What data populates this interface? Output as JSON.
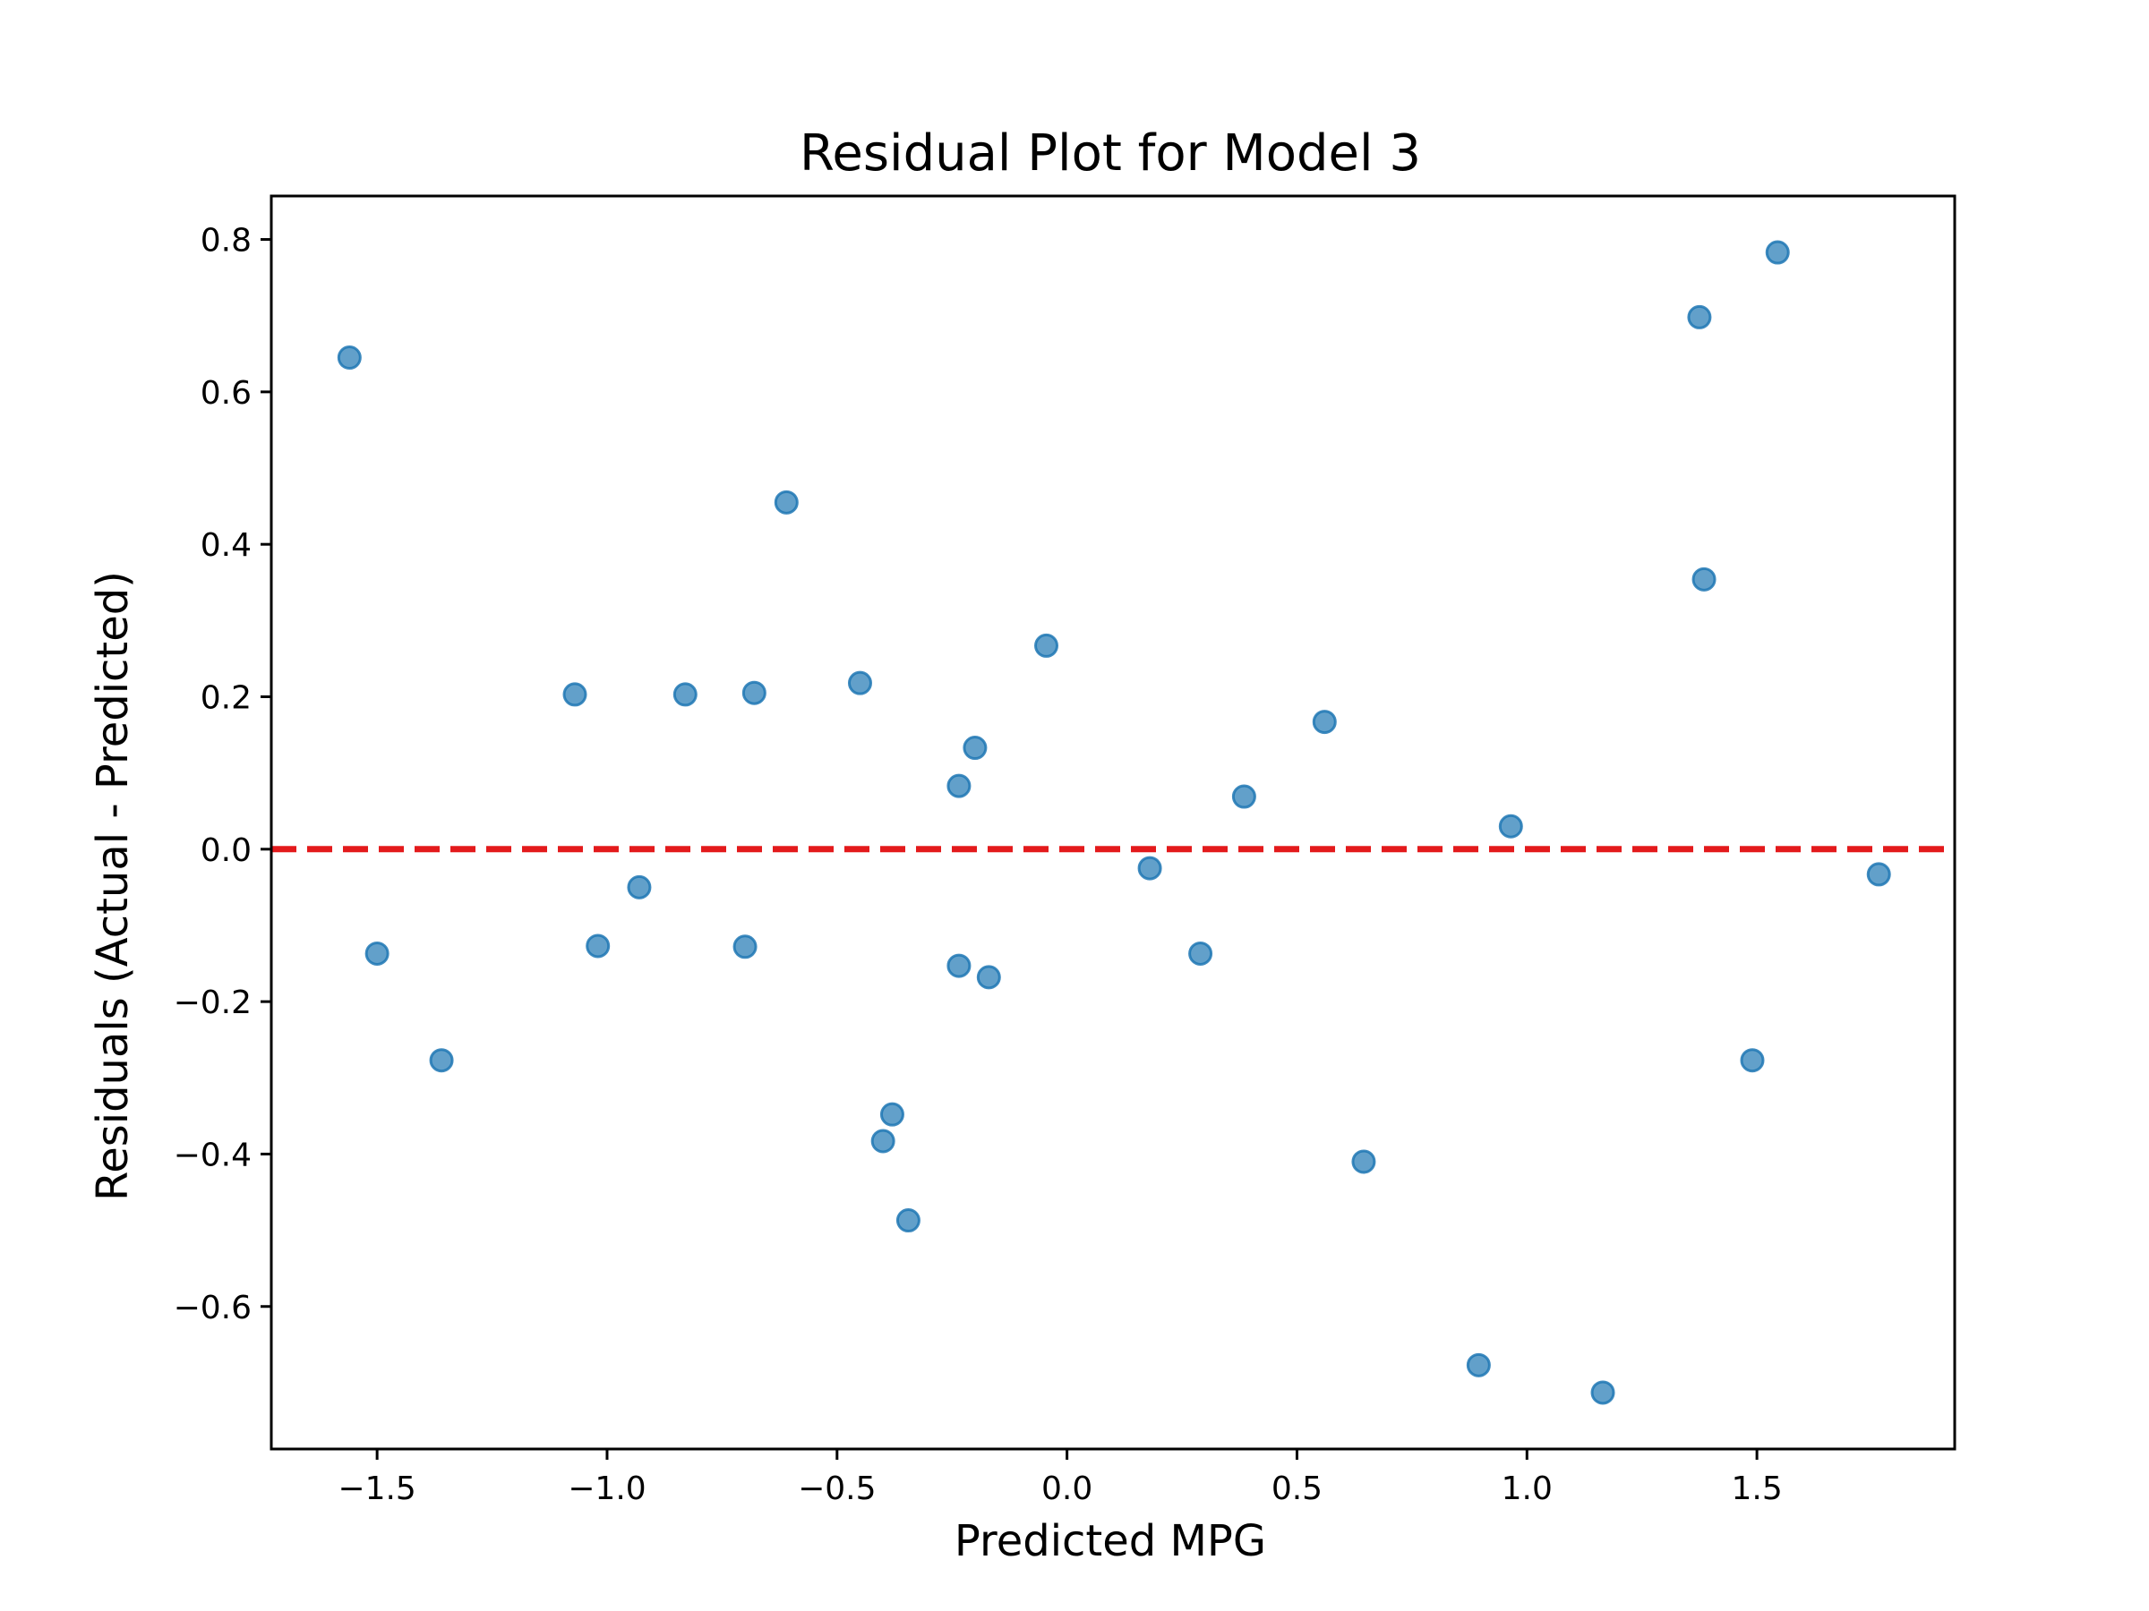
{
  "chart_data": {
    "type": "scatter",
    "title": "Residual Plot for Model 3",
    "xlabel": "Predicted MPG",
    "ylabel": "Residuals (Actual - Predicted)",
    "xlim": [
      -1.73,
      1.93
    ],
    "ylim": [
      -0.787,
      0.857
    ],
    "xticks": [
      -1.5,
      -1.0,
      -0.5,
      0.0,
      0.5,
      1.0,
      1.5
    ],
    "xtick_labels": [
      "−1.5",
      "−1.0",
      "−0.5",
      "0.0",
      "0.5",
      "1.0",
      "1.5"
    ],
    "yticks": [
      0.8,
      0.6,
      0.4,
      0.2,
      0.0,
      -0.2,
      -0.4,
      -0.6
    ],
    "ytick_labels": [
      "0.8",
      "0.6",
      "0.4",
      "0.2",
      "0.0",
      "−0.2",
      "−0.4",
      "−0.6"
    ],
    "grid": false,
    "reference_line": {
      "y": 0,
      "color": "#e31a1c",
      "style": "dashed"
    },
    "marker_color": "#1f77b4",
    "points": [
      {
        "x": -1.56,
        "y": 0.645
      },
      {
        "x": -1.5,
        "y": -0.137
      },
      {
        "x": -1.36,
        "y": -0.277
      },
      {
        "x": -1.07,
        "y": 0.203
      },
      {
        "x": -1.02,
        "y": -0.127
      },
      {
        "x": -0.93,
        "y": -0.05
      },
      {
        "x": -0.83,
        "y": 0.203
      },
      {
        "x": -0.7,
        "y": -0.128
      },
      {
        "x": -0.68,
        "y": 0.205
      },
      {
        "x": -0.61,
        "y": 0.455
      },
      {
        "x": -0.45,
        "y": 0.218
      },
      {
        "x": -0.4,
        "y": -0.383
      },
      {
        "x": -0.38,
        "y": -0.348
      },
      {
        "x": -0.345,
        "y": -0.487
      },
      {
        "x": -0.235,
        "y": 0.083
      },
      {
        "x": -0.235,
        "y": -0.153
      },
      {
        "x": -0.2,
        "y": 0.133
      },
      {
        "x": -0.17,
        "y": -0.168
      },
      {
        "x": -0.045,
        "y": 0.267
      },
      {
        "x": 0.18,
        "y": -0.025
      },
      {
        "x": 0.29,
        "y": -0.137
      },
      {
        "x": 0.385,
        "y": 0.069
      },
      {
        "x": 0.56,
        "y": 0.167
      },
      {
        "x": 0.645,
        "y": -0.41
      },
      {
        "x": 0.895,
        "y": -0.677
      },
      {
        "x": 0.965,
        "y": 0.03
      },
      {
        "x": 1.165,
        "y": -0.713
      },
      {
        "x": 1.375,
        "y": 0.698
      },
      {
        "x": 1.385,
        "y": 0.354
      },
      {
        "x": 1.49,
        "y": -0.277
      },
      {
        "x": 1.545,
        "y": 0.783
      },
      {
        "x": 1.765,
        "y": -0.033
      }
    ]
  }
}
